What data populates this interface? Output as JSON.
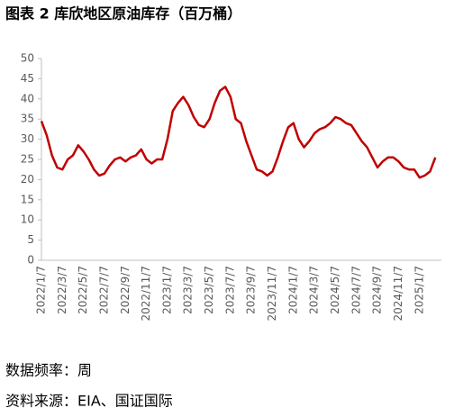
{
  "chart_data": {
    "type": "line",
    "title": "图表 2 库欣地区原油库存（百万桶）",
    "notes": [
      "数据频率：周",
      "资料来源：EIA、国证国际"
    ],
    "categories": [
      "2022/1/7",
      null,
      null,
      null,
      "2022/3/7",
      null,
      null,
      null,
      "2022/5/7",
      null,
      null,
      null,
      "2022/7/7",
      null,
      null,
      null,
      "2022/9/7",
      null,
      null,
      null,
      "2022/11/7",
      null,
      null,
      null,
      "2023/1/7",
      null,
      null,
      null,
      "2023/3/7",
      null,
      null,
      null,
      "2023/5/7",
      null,
      null,
      null,
      "2023/7/7",
      null,
      null,
      null,
      "2023/9/7",
      null,
      null,
      null,
      "2023/11/7",
      null,
      null,
      null,
      "2024/1/7",
      null,
      null,
      null,
      "2024/3/7",
      null,
      null,
      null,
      "2024/5/7",
      null,
      null,
      null,
      "2024/7/7",
      null,
      null,
      null,
      "2024/9/7",
      null,
      null,
      null,
      "2024/11/7",
      null,
      null,
      null,
      "2025/1/7",
      null,
      null,
      null
    ],
    "values": [
      34.5,
      31,
      26,
      23,
      22.5,
      25,
      26,
      28.5,
      27,
      25,
      22.5,
      21,
      21.5,
      23.5,
      25,
      25.5,
      24.5,
      25.5,
      26,
      27.5,
      25,
      24,
      25,
      25,
      30,
      37,
      39,
      40.5,
      38.5,
      35.5,
      33.5,
      33,
      35,
      39,
      42,
      43,
      40.5,
      35,
      34,
      29.5,
      26,
      22.5,
      22,
      21,
      22,
      25.5,
      29.5,
      33,
      34,
      30,
      28,
      29.5,
      31.5,
      32.5,
      33,
      34,
      35.5,
      35,
      34,
      33.5,
      31.5,
      29.5,
      28,
      25.5,
      23,
      24.5,
      25.5,
      25.5,
      24.5,
      23,
      22.5,
      22.5,
      20.5,
      21,
      22,
      25.5
    ],
    "color": "#c00000",
    "ylim": [
      0,
      50
    ],
    "yticks": [
      0,
      5,
      10,
      15,
      20,
      25,
      30,
      35,
      40,
      45,
      50
    ],
    "grid": false
  }
}
